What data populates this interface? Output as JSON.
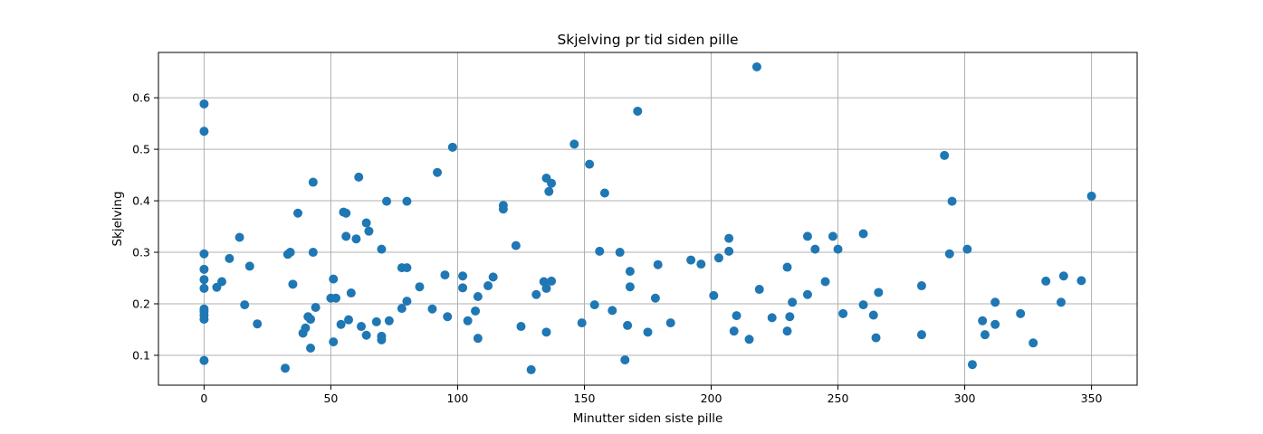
{
  "chart_data": {
    "type": "scatter",
    "title": "Skjelving pr tid siden pille",
    "xlabel": "Minutter siden siste pille",
    "ylabel": "Skjelving",
    "xlim": [
      -18,
      368
    ],
    "ylim": [
      0.042,
      0.688
    ],
    "xticks": [
      0,
      50,
      100,
      150,
      200,
      250,
      300,
      350
    ],
    "yticks": [
      0.1,
      0.2,
      0.3,
      0.4,
      0.5,
      0.6
    ],
    "ytick_labels": [
      "0.1",
      "0.2",
      "0.3",
      "0.4",
      "0.5",
      "0.6"
    ],
    "grid": true,
    "marker_color": "#1f77b4",
    "points": [
      [
        0,
        0.588
      ],
      [
        0,
        0.535
      ],
      [
        0,
        0.297
      ],
      [
        0,
        0.267
      ],
      [
        0,
        0.247
      ],
      [
        0,
        0.23
      ],
      [
        0,
        0.19
      ],
      [
        0,
        0.185
      ],
      [
        0,
        0.178
      ],
      [
        0,
        0.17
      ],
      [
        0,
        0.09
      ],
      [
        5,
        0.232
      ],
      [
        7,
        0.243
      ],
      [
        10,
        0.288
      ],
      [
        14,
        0.329
      ],
      [
        16,
        0.198
      ],
      [
        18,
        0.273
      ],
      [
        21,
        0.161
      ],
      [
        32,
        0.075
      ],
      [
        33,
        0.296
      ],
      [
        34,
        0.3
      ],
      [
        35,
        0.238
      ],
      [
        37,
        0.376
      ],
      [
        39,
        0.143
      ],
      [
        40,
        0.153
      ],
      [
        41,
        0.175
      ],
      [
        42,
        0.114
      ],
      [
        42,
        0.17
      ],
      [
        43,
        0.436
      ],
      [
        43,
        0.3
      ],
      [
        44,
        0.193
      ],
      [
        50,
        0.211
      ],
      [
        51,
        0.248
      ],
      [
        51,
        0.126
      ],
      [
        52,
        0.211
      ],
      [
        54,
        0.16
      ],
      [
        55,
        0.378
      ],
      [
        56,
        0.376
      ],
      [
        56,
        0.331
      ],
      [
        57,
        0.169
      ],
      [
        58,
        0.221
      ],
      [
        60,
        0.326
      ],
      [
        61,
        0.446
      ],
      [
        62,
        0.156
      ],
      [
        64,
        0.357
      ],
      [
        64,
        0.139
      ],
      [
        65,
        0.341
      ],
      [
        68,
        0.165
      ],
      [
        70,
        0.306
      ],
      [
        70,
        0.137
      ],
      [
        70,
        0.13
      ],
      [
        72,
        0.399
      ],
      [
        73,
        0.167
      ],
      [
        78,
        0.191
      ],
      [
        78,
        0.27
      ],
      [
        80,
        0.27
      ],
      [
        80,
        0.399
      ],
      [
        80,
        0.205
      ],
      [
        85,
        0.233
      ],
      [
        90,
        0.19
      ],
      [
        92,
        0.455
      ],
      [
        95,
        0.256
      ],
      [
        96,
        0.175
      ],
      [
        98,
        0.504
      ],
      [
        102,
        0.254
      ],
      [
        102,
        0.231
      ],
      [
        104,
        0.167
      ],
      [
        107,
        0.186
      ],
      [
        108,
        0.214
      ],
      [
        108,
        0.133
      ],
      [
        112,
        0.235
      ],
      [
        114,
        0.252
      ],
      [
        118,
        0.391
      ],
      [
        118,
        0.384
      ],
      [
        123,
        0.313
      ],
      [
        125,
        0.156
      ],
      [
        129,
        0.072
      ],
      [
        131,
        0.218
      ],
      [
        134,
        0.243
      ],
      [
        135,
        0.145
      ],
      [
        135,
        0.23
      ],
      [
        135,
        0.444
      ],
      [
        136,
        0.418
      ],
      [
        137,
        0.434
      ],
      [
        137,
        0.244
      ],
      [
        146,
        0.51
      ],
      [
        149,
        0.163
      ],
      [
        152,
        0.471
      ],
      [
        154,
        0.198
      ],
      [
        156,
        0.302
      ],
      [
        158,
        0.415
      ],
      [
        161,
        0.187
      ],
      [
        164,
        0.3
      ],
      [
        166,
        0.091
      ],
      [
        167,
        0.158
      ],
      [
        168,
        0.263
      ],
      [
        168,
        0.233
      ],
      [
        171,
        0.574
      ],
      [
        175,
        0.145
      ],
      [
        178,
        0.211
      ],
      [
        179,
        0.276
      ],
      [
        184,
        0.163
      ],
      [
        192,
        0.285
      ],
      [
        196,
        0.277
      ],
      [
        201,
        0.216
      ],
      [
        203,
        0.289
      ],
      [
        207,
        0.327
      ],
      [
        207,
        0.302
      ],
      [
        209,
        0.147
      ],
      [
        210,
        0.177
      ],
      [
        215,
        0.131
      ],
      [
        218,
        0.66
      ],
      [
        219,
        0.228
      ],
      [
        224,
        0.173
      ],
      [
        230,
        0.271
      ],
      [
        230,
        0.147
      ],
      [
        231,
        0.175
      ],
      [
        232,
        0.203
      ],
      [
        238,
        0.331
      ],
      [
        238,
        0.218
      ],
      [
        241,
        0.306
      ],
      [
        245,
        0.243
      ],
      [
        248,
        0.331
      ],
      [
        250,
        0.306
      ],
      [
        252,
        0.181
      ],
      [
        260,
        0.336
      ],
      [
        260,
        0.198
      ],
      [
        264,
        0.178
      ],
      [
        265,
        0.134
      ],
      [
        266,
        0.222
      ],
      [
        283,
        0.235
      ],
      [
        283,
        0.14
      ],
      [
        292,
        0.488
      ],
      [
        294,
        0.297
      ],
      [
        295,
        0.399
      ],
      [
        301,
        0.306
      ],
      [
        303,
        0.082
      ],
      [
        307,
        0.167
      ],
      [
        308,
        0.14
      ],
      [
        312,
        0.203
      ],
      [
        312,
        0.16
      ],
      [
        322,
        0.181
      ],
      [
        327,
        0.124
      ],
      [
        332,
        0.244
      ],
      [
        338,
        0.203
      ],
      [
        339,
        0.254
      ],
      [
        346,
        0.245
      ],
      [
        350,
        0.409
      ]
    ]
  }
}
